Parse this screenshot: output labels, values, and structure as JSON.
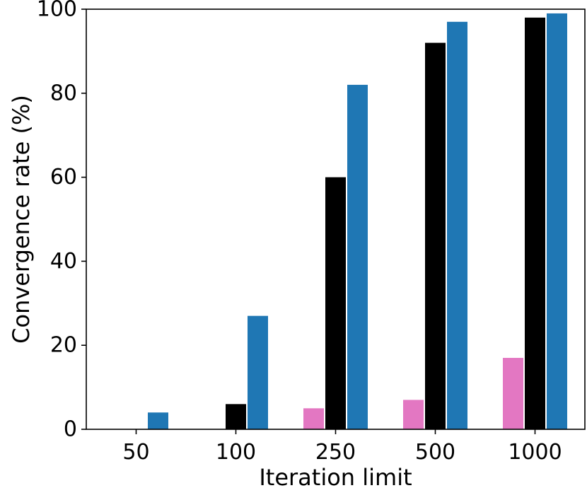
{
  "chart_data": {
    "type": "bar",
    "title": "",
    "xlabel": "Iteration limit",
    "ylabel": "Convergence rate (%)",
    "categories": [
      "50",
      "100",
      "250",
      "500",
      "1000"
    ],
    "ylim": [
      0,
      100
    ],
    "yticks": [
      "0",
      "20",
      "40",
      "60",
      "80",
      "100"
    ],
    "grid": false,
    "legend": "none",
    "series": [
      {
        "color": "#e377c2",
        "values": [
          0,
          0,
          5,
          7,
          17
        ]
      },
      {
        "color": "#000000",
        "values": [
          0,
          6,
          60,
          92,
          98
        ]
      },
      {
        "color": "#1f77b4",
        "values": [
          4,
          27,
          82,
          97,
          99
        ]
      }
    ]
  }
}
